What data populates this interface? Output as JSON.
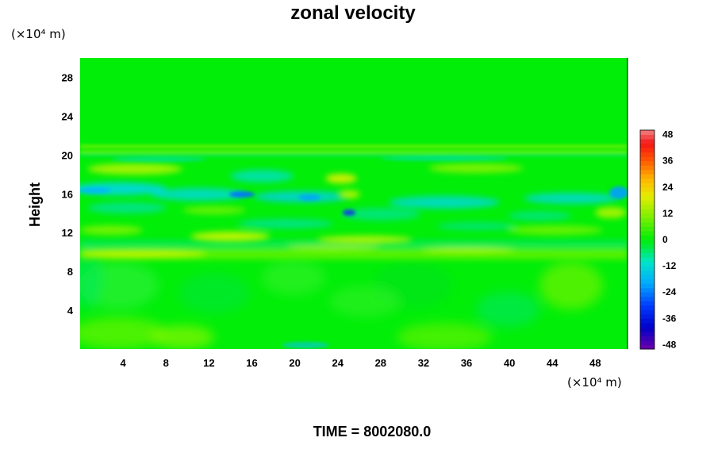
{
  "chart_data": {
    "type": "heatmap",
    "title": "zonal velocity",
    "xlabel": "",
    "ylabel": "Height",
    "x_unit": "(×10⁴ m)",
    "y_unit": "(×10⁴ m)",
    "xlim": [
      0,
      51
    ],
    "ylim": [
      0,
      30
    ],
    "x_ticks": [
      4,
      8,
      12,
      16,
      20,
      24,
      28,
      32,
      36,
      40,
      44,
      48
    ],
    "y_ticks": [
      4,
      8,
      12,
      16,
      20,
      24,
      28
    ],
    "colorbar": {
      "range": [
        -50,
        50
      ],
      "ticks": [
        48,
        36,
        24,
        12,
        0,
        -12,
        -24,
        -36,
        -48
      ]
    },
    "field_features": [
      {
        "x": 15,
        "y": 16,
        "value": -30
      },
      {
        "x": 22,
        "y": 16,
        "value": -20
      },
      {
        "x": 25,
        "y": 14.5,
        "value": -32
      },
      {
        "x": 46,
        "y": 6,
        "value": 14
      },
      {
        "x": 50,
        "y": 16,
        "value": -20
      },
      {
        "x": 2,
        "y": 16,
        "value": -18
      },
      {
        "x": 12,
        "y": 18.5,
        "value": 10
      },
      {
        "x": 24,
        "y": 17.5,
        "value": 12
      },
      {
        "x": 28,
        "y": 11,
        "value": 12
      },
      {
        "x": 5,
        "y": 9.8,
        "value": 12
      },
      {
        "x": 20,
        "y": 0.8,
        "value": -14
      }
    ],
    "grid": false,
    "legend": "right"
  },
  "footer": {
    "time_label": "TIME = 8002080.0"
  }
}
